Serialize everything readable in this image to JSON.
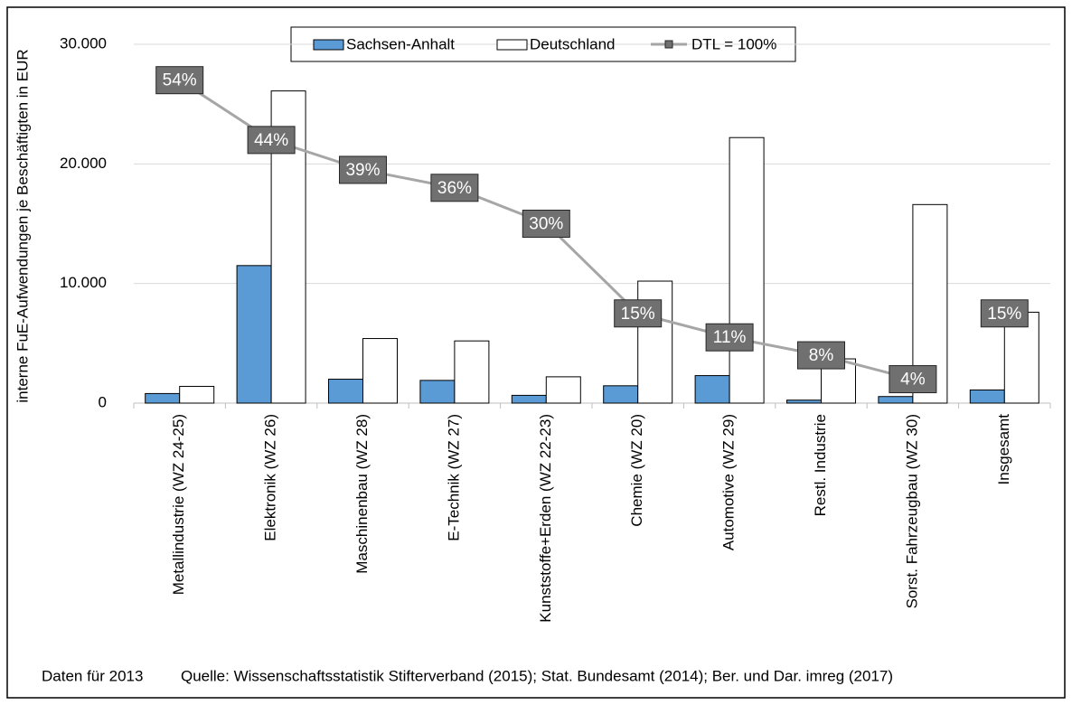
{
  "chart_data": {
    "type": "bar",
    "y_label": "interne FuE-Aufwendungen  je Beschäftigten in EUR",
    "categories": [
      "Metallindustrie (WZ 24-25)",
      "Elektronik (WZ 26)",
      "Maschinenbau (WZ 28)",
      "E-Technik (WZ 27)",
      "Kunststoffe+Erden (WZ 22-23)",
      "Chemie (WZ 20)",
      "Automotive (WZ 29)",
      "Restl. Industrie",
      "Sorst. Fahrzeugbau (WZ 30)",
      "Insgesamt"
    ],
    "series": [
      {
        "name": "Sachsen-Anhalt",
        "color": "#5b9bd5",
        "values": [
          800,
          11500,
          2000,
          1900,
          650,
          1450,
          2300,
          250,
          550,
          1100
        ]
      },
      {
        "name": "Deutschland",
        "color": "#ffffff",
        "values": [
          1400,
          26100,
          5400,
          5200,
          2200,
          10200,
          22200,
          3700,
          16600,
          7600
        ]
      },
      {
        "name": "DTL = 100%",
        "type": "line",
        "axis": "y2",
        "color": "#a6a6a6",
        "values": [
          54,
          44,
          39,
          36,
          30,
          15,
          11,
          8,
          4,
          null
        ],
        "value_labels": [
          "54%",
          "44%",
          "39%",
          "36%",
          "30%",
          "15%",
          "11%",
          "8%",
          "4%",
          null
        ]
      },
      {
        "type": "marker",
        "axis": "y2",
        "values": [
          null,
          null,
          null,
          null,
          null,
          null,
          null,
          null,
          null,
          15
        ],
        "value_labels": [
          null,
          null,
          null,
          null,
          null,
          null,
          null,
          null,
          null,
          "15%"
        ]
      }
    ],
    "ylim": [
      0,
      30000
    ],
    "yticks": [
      0,
      {
        "value": 10000,
        "label": "10.000"
      },
      {
        "value": 20000,
        "label": "20.000"
      },
      {
        "value": 30000,
        "label": "30.000"
      }
    ],
    "y2lim": [
      0,
      60
    ],
    "grid": true,
    "legend": "top",
    "note": "Daten für 2013",
    "source": "Quelle: Wissenschaftsstatistik Stifterverband (2015); Stat. Bundesamt (2014); Ber. und Dar. imreg (2017)"
  }
}
